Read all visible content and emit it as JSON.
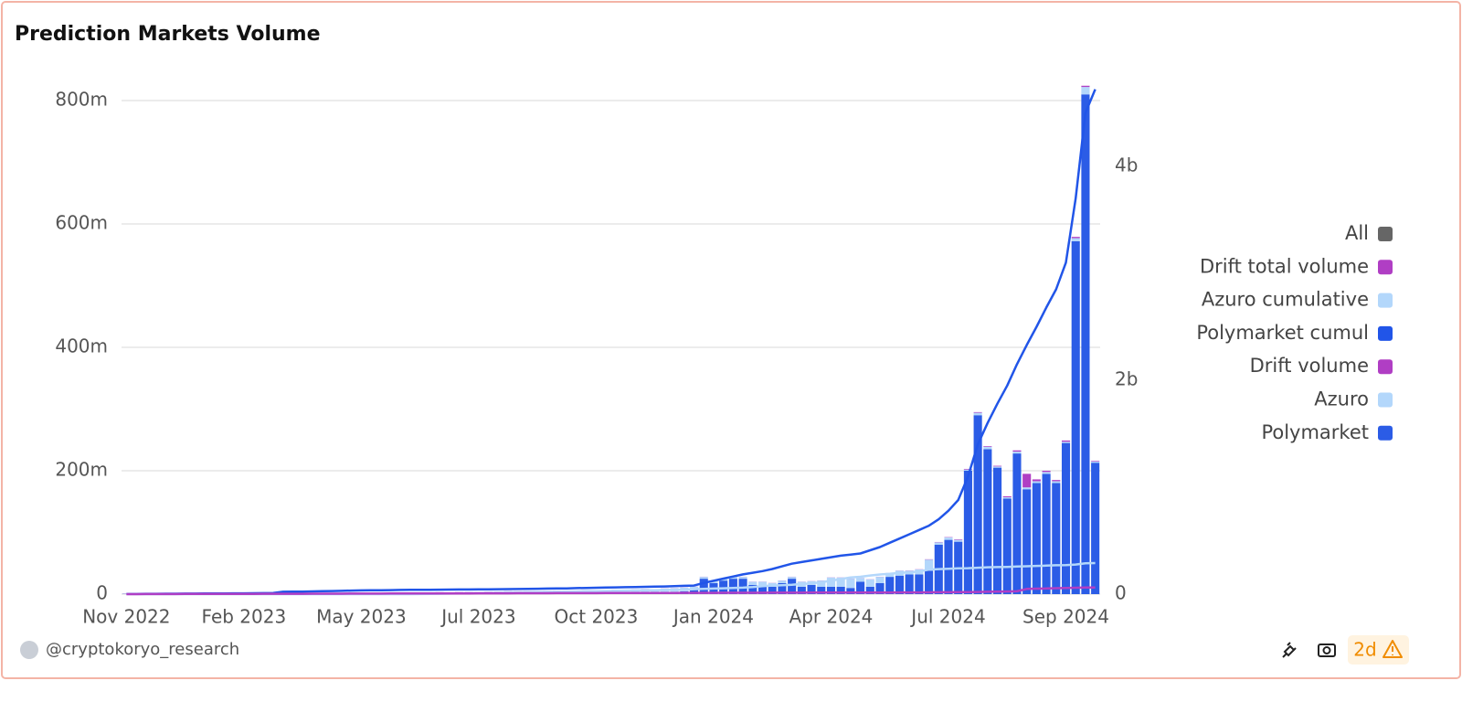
{
  "chart_data": {
    "type": "bar",
    "title": "Prediction Markets Volume",
    "footer": {
      "author": "@cryptokoryo_research",
      "badge": "2d"
    },
    "categories": [
      "Nov 2022",
      null,
      null,
      null,
      null,
      null,
      null,
      null,
      null,
      null,
      null,
      null,
      "Feb 2023",
      null,
      null,
      null,
      null,
      null,
      null,
      null,
      null,
      null,
      null,
      null,
      "May 2023",
      null,
      null,
      null,
      null,
      null,
      null,
      null,
      null,
      null,
      null,
      null,
      "Jul 2023",
      null,
      null,
      null,
      null,
      null,
      null,
      null,
      null,
      null,
      null,
      null,
      "Oct 2023",
      null,
      null,
      null,
      null,
      null,
      null,
      null,
      null,
      null,
      null,
      null,
      "Jan 2024",
      null,
      null,
      null,
      null,
      null,
      null,
      null,
      null,
      null,
      null,
      null,
      "Apr 2024",
      null,
      null,
      null,
      null,
      null,
      null,
      null,
      null,
      null,
      null,
      null,
      "Jul 2024",
      null,
      null,
      null,
      null,
      null,
      null,
      null,
      null,
      null,
      null,
      null,
      "Sep 2024",
      null,
      null,
      null
    ],
    "ylim": [
      0,
      840
    ],
    "yticks": [
      0,
      {
        "value": 200,
        "label": "200m"
      },
      {
        "value": 400,
        "label": "400m"
      },
      {
        "value": 600,
        "label": "600m"
      },
      {
        "value": 800,
        "label": "800m"
      }
    ],
    "y2lim": [
      0,
      4846
    ],
    "y2ticks": [
      0,
      {
        "value": 2000,
        "label": "2b"
      },
      {
        "value": 4000,
        "label": "4b"
      }
    ],
    "grid": true,
    "stacked": true,
    "legend": "right",
    "legend_all": {
      "name": "All",
      "color": "#666666"
    },
    "series": [
      {
        "name": "Polymarket",
        "color": "#2b5ce6",
        "kind": "bar",
        "values": [
          0.4,
          0.5,
          0.4,
          0.6,
          0.5,
          0.5,
          0.4,
          0.6,
          0.5,
          0.5,
          0.6,
          0.5,
          0.7,
          0.6,
          0.8,
          0.7,
          1.0,
          0.8,
          0.9,
          0.8,
          0.9,
          1.0,
          0.9,
          1.1,
          1.0,
          1.2,
          1.1,
          1.0,
          1.2,
          1.1,
          1.3,
          1.2,
          1.4,
          1.2,
          1.3,
          1.5,
          1.4,
          1.3,
          1.5,
          1.6,
          1.4,
          1.5,
          1.7,
          1.6,
          1.8,
          1.5,
          1.7,
          1.9,
          1.8,
          2.0,
          2.2,
          2.0,
          2.4,
          2.6,
          2.8,
          3.0,
          3.5,
          4.5,
          8,
          25,
          18,
          22,
          25,
          25,
          15,
          12,
          12,
          18,
          25,
          12,
          15,
          12,
          12,
          12,
          10,
          20,
          12,
          18,
          28,
          30,
          32,
          32,
          38,
          80,
          88,
          85,
          200,
          290,
          235,
          205,
          155,
          228,
          170,
          180,
          195,
          180,
          245,
          572,
          810,
          213
        ]
      },
      {
        "name": "Azuro",
        "color": "#b3d7fb",
        "kind": "bar",
        "values": [
          0,
          0,
          0,
          0,
          0,
          0,
          0,
          0,
          0,
          0,
          0,
          0,
          0,
          0,
          0,
          0,
          0,
          0,
          0,
          0,
          0,
          0,
          0,
          0,
          0,
          0,
          0,
          0,
          0,
          0,
          1,
          1,
          1.5,
          1.5,
          2,
          2,
          2,
          2.5,
          2.5,
          3,
          3,
          3,
          3,
          3.5,
          3.5,
          4,
          4,
          4,
          4.5,
          4.5,
          5,
          5,
          5,
          5.5,
          5,
          6,
          6,
          6,
          4,
          3,
          3,
          3,
          3,
          3,
          5,
          8,
          6,
          4,
          3,
          8,
          6,
          10,
          15,
          15,
          15,
          6,
          12,
          10,
          6,
          8,
          6,
          8,
          18,
          4,
          4,
          3,
          2,
          4,
          4,
          2,
          2,
          3,
          3,
          3,
          3,
          3,
          2,
          5,
          12,
          2
        ]
      },
      {
        "name": "Drift volume",
        "color": "#b03ec4",
        "kind": "bar",
        "values": [
          0.2,
          0.2,
          0.2,
          0.2,
          0.2,
          0.2,
          0.2,
          0.2,
          0.2,
          0.2,
          0.2,
          0.2,
          0.2,
          0.2,
          0.2,
          0.2,
          0.2,
          0.2,
          0.2,
          0.2,
          0.2,
          0.2,
          0.2,
          0.2,
          0.2,
          0.2,
          0.2,
          0.2,
          0.2,
          0.2,
          0.2,
          0.2,
          0.2,
          0.2,
          0.2,
          0.2,
          0.2,
          0.2,
          0.2,
          0.2,
          0.2,
          0.2,
          0.2,
          0.2,
          0.2,
          0.2,
          0.2,
          0.2,
          0.2,
          0.2,
          0.2,
          0.2,
          0.2,
          0.2,
          0.2,
          0.2,
          0.2,
          0.2,
          0.2,
          0.2,
          0.2,
          0.2,
          0.2,
          0.2,
          0.2,
          0.2,
          0.2,
          0.2,
          0.2,
          0.2,
          0.2,
          0.2,
          0.2,
          0.2,
          0.2,
          0.2,
          0.2,
          0.2,
          0.2,
          0.2,
          0.3,
          0.3,
          0.5,
          0.5,
          0.5,
          0.8,
          1,
          1,
          1,
          1,
          1.5,
          2,
          22,
          3,
          2,
          2,
          2,
          2,
          2,
          1
        ]
      },
      {
        "name": "Polymarket cumul",
        "color": "#2155e8",
        "kind": "line",
        "axis": "y2",
        "values": [
          2,
          2.5,
          3,
          3.5,
          4,
          4.5,
          5,
          5.5,
          6,
          6.5,
          7,
          7.5,
          8,
          8.5,
          9,
          10,
          22,
          23,
          24,
          26,
          27,
          29,
          31,
          33,
          35,
          36,
          37,
          38,
          39,
          40,
          40.5,
          41,
          42,
          43,
          43.5,
          44,
          44.5,
          45,
          46,
          47,
          48,
          49,
          50,
          52,
          53,
          54,
          56,
          58,
          60,
          62,
          63,
          65,
          67,
          68,
          70,
          72,
          75,
          78,
          80,
          105,
          125,
          145,
          165,
          185,
          200,
          215,
          235,
          260,
          285,
          300,
          315,
          330,
          345,
          360,
          370,
          380,
          410,
          440,
          480,
          520,
          560,
          600,
          640,
          700,
          780,
          880,
          1100,
          1400,
          1600,
          1780,
          1950,
          2150,
          2330,
          2500,
          2680,
          2850,
          3100,
          3700,
          4500,
          4720
        ]
      },
      {
        "name": "Azuro cumulative",
        "color": "#b3d7fb",
        "kind": "line",
        "axis": "y2",
        "values": [
          0,
          0,
          0,
          0,
          0,
          0,
          0,
          0,
          0,
          0,
          0,
          0,
          0,
          0,
          0,
          0,
          0,
          0,
          0,
          0,
          0,
          0,
          0,
          0,
          0,
          0,
          0,
          0,
          0,
          0,
          1,
          2,
          3,
          5,
          6,
          8,
          10,
          12,
          13,
          15,
          16,
          18,
          19,
          21,
          22,
          24,
          25,
          27,
          28,
          30,
          31,
          33,
          34,
          36,
          37,
          39,
          40,
          42,
          46,
          49,
          52,
          55,
          58,
          61,
          66,
          74,
          80,
          84,
          87,
          95,
          101,
          111,
          126,
          141,
          156,
          162,
          174,
          184,
          190,
          198,
          204,
          212,
          230,
          234,
          238,
          241,
          243,
          247,
          251,
          253,
          255,
          258,
          261,
          264,
          267,
          270,
          272,
          277,
          289,
          291
        ]
      },
      {
        "name": "Drift total volume",
        "color": "#b03ec4",
        "kind": "line",
        "axis": "y2",
        "values": [
          0.2,
          0.4,
          0.6,
          0.8,
          1.0,
          1.2,
          1.4,
          1.6,
          1.8,
          2.0,
          2.2,
          2.4,
          2.6,
          2.8,
          3.0,
          3.2,
          3.4,
          3.6,
          3.8,
          4.0,
          4.2,
          4.4,
          4.6,
          4.8,
          5.0,
          5.2,
          5.4,
          5.6,
          5.8,
          6.0,
          6.2,
          6.4,
          6.6,
          6.8,
          7.0,
          7.2,
          7.4,
          7.6,
          7.8,
          8.0,
          8.2,
          8.4,
          8.6,
          8.8,
          9.0,
          9.2,
          9.4,
          9.6,
          9.8,
          10.0,
          10.2,
          10.4,
          10.6,
          10.8,
          11.0,
          11.2,
          11.4,
          11.6,
          11.8,
          12.0,
          12.2,
          12.4,
          12.6,
          12.8,
          13.0,
          13.2,
          13.4,
          13.6,
          13.8,
          14.0,
          14.2,
          14.4,
          14.6,
          14.8,
          15.0,
          15.2,
          15.4,
          15.6,
          15.8,
          16.0,
          16.3,
          16.6,
          17.1,
          17.6,
          18.1,
          18.9,
          19.9,
          20.9,
          21.9,
          22.9,
          24.4,
          26.4,
          48.4,
          51.4,
          53.4,
          55.4,
          57.4,
          59.4,
          61.4,
          62.4
        ]
      }
    ]
  }
}
